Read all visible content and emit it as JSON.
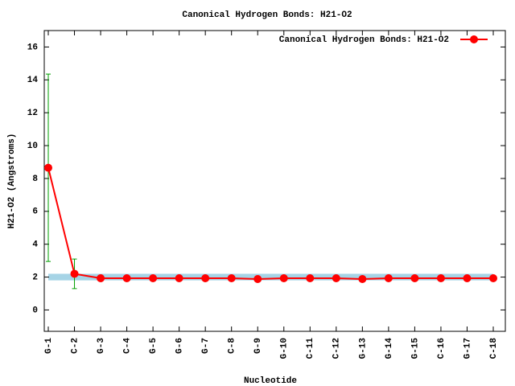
{
  "chart_data": {
    "type": "line",
    "title": "Canonical Hydrogen Bonds: H21-O2",
    "x_label": "Nucleotide",
    "y_label": "H21-O2 (Angstroms)",
    "categories": [
      "G-1",
      "C-2",
      "G-3",
      "C-4",
      "G-5",
      "G-6",
      "G-7",
      "C-8",
      "G-9",
      "G-10",
      "C-11",
      "C-12",
      "G-13",
      "G-14",
      "G-15",
      "C-16",
      "G-17",
      "C-18"
    ],
    "series": [
      {
        "name": "Canonical Hydrogen Bonds: H21-O2",
        "color": "#ff0000",
        "values": [
          8.65,
          2.2,
          1.93,
          1.93,
          1.93,
          1.93,
          1.93,
          1.93,
          1.88,
          1.93,
          1.93,
          1.93,
          1.88,
          1.93,
          1.93,
          1.93,
          1.93,
          1.93
        ],
        "errors": [
          5.7,
          0.9,
          null,
          null,
          null,
          null,
          null,
          null,
          null,
          null,
          null,
          null,
          null,
          null,
          null,
          null,
          null,
          null
        ],
        "error_color": "#00a000"
      }
    ],
    "reference_band": [
      1.8,
      2.2
    ],
    "band_color": "#a6d4e6",
    "ylim": [
      -1.3,
      17
    ],
    "yticks": [
      0,
      2,
      4,
      6,
      8,
      10,
      12,
      14,
      16
    ],
    "legend": "top-right"
  }
}
